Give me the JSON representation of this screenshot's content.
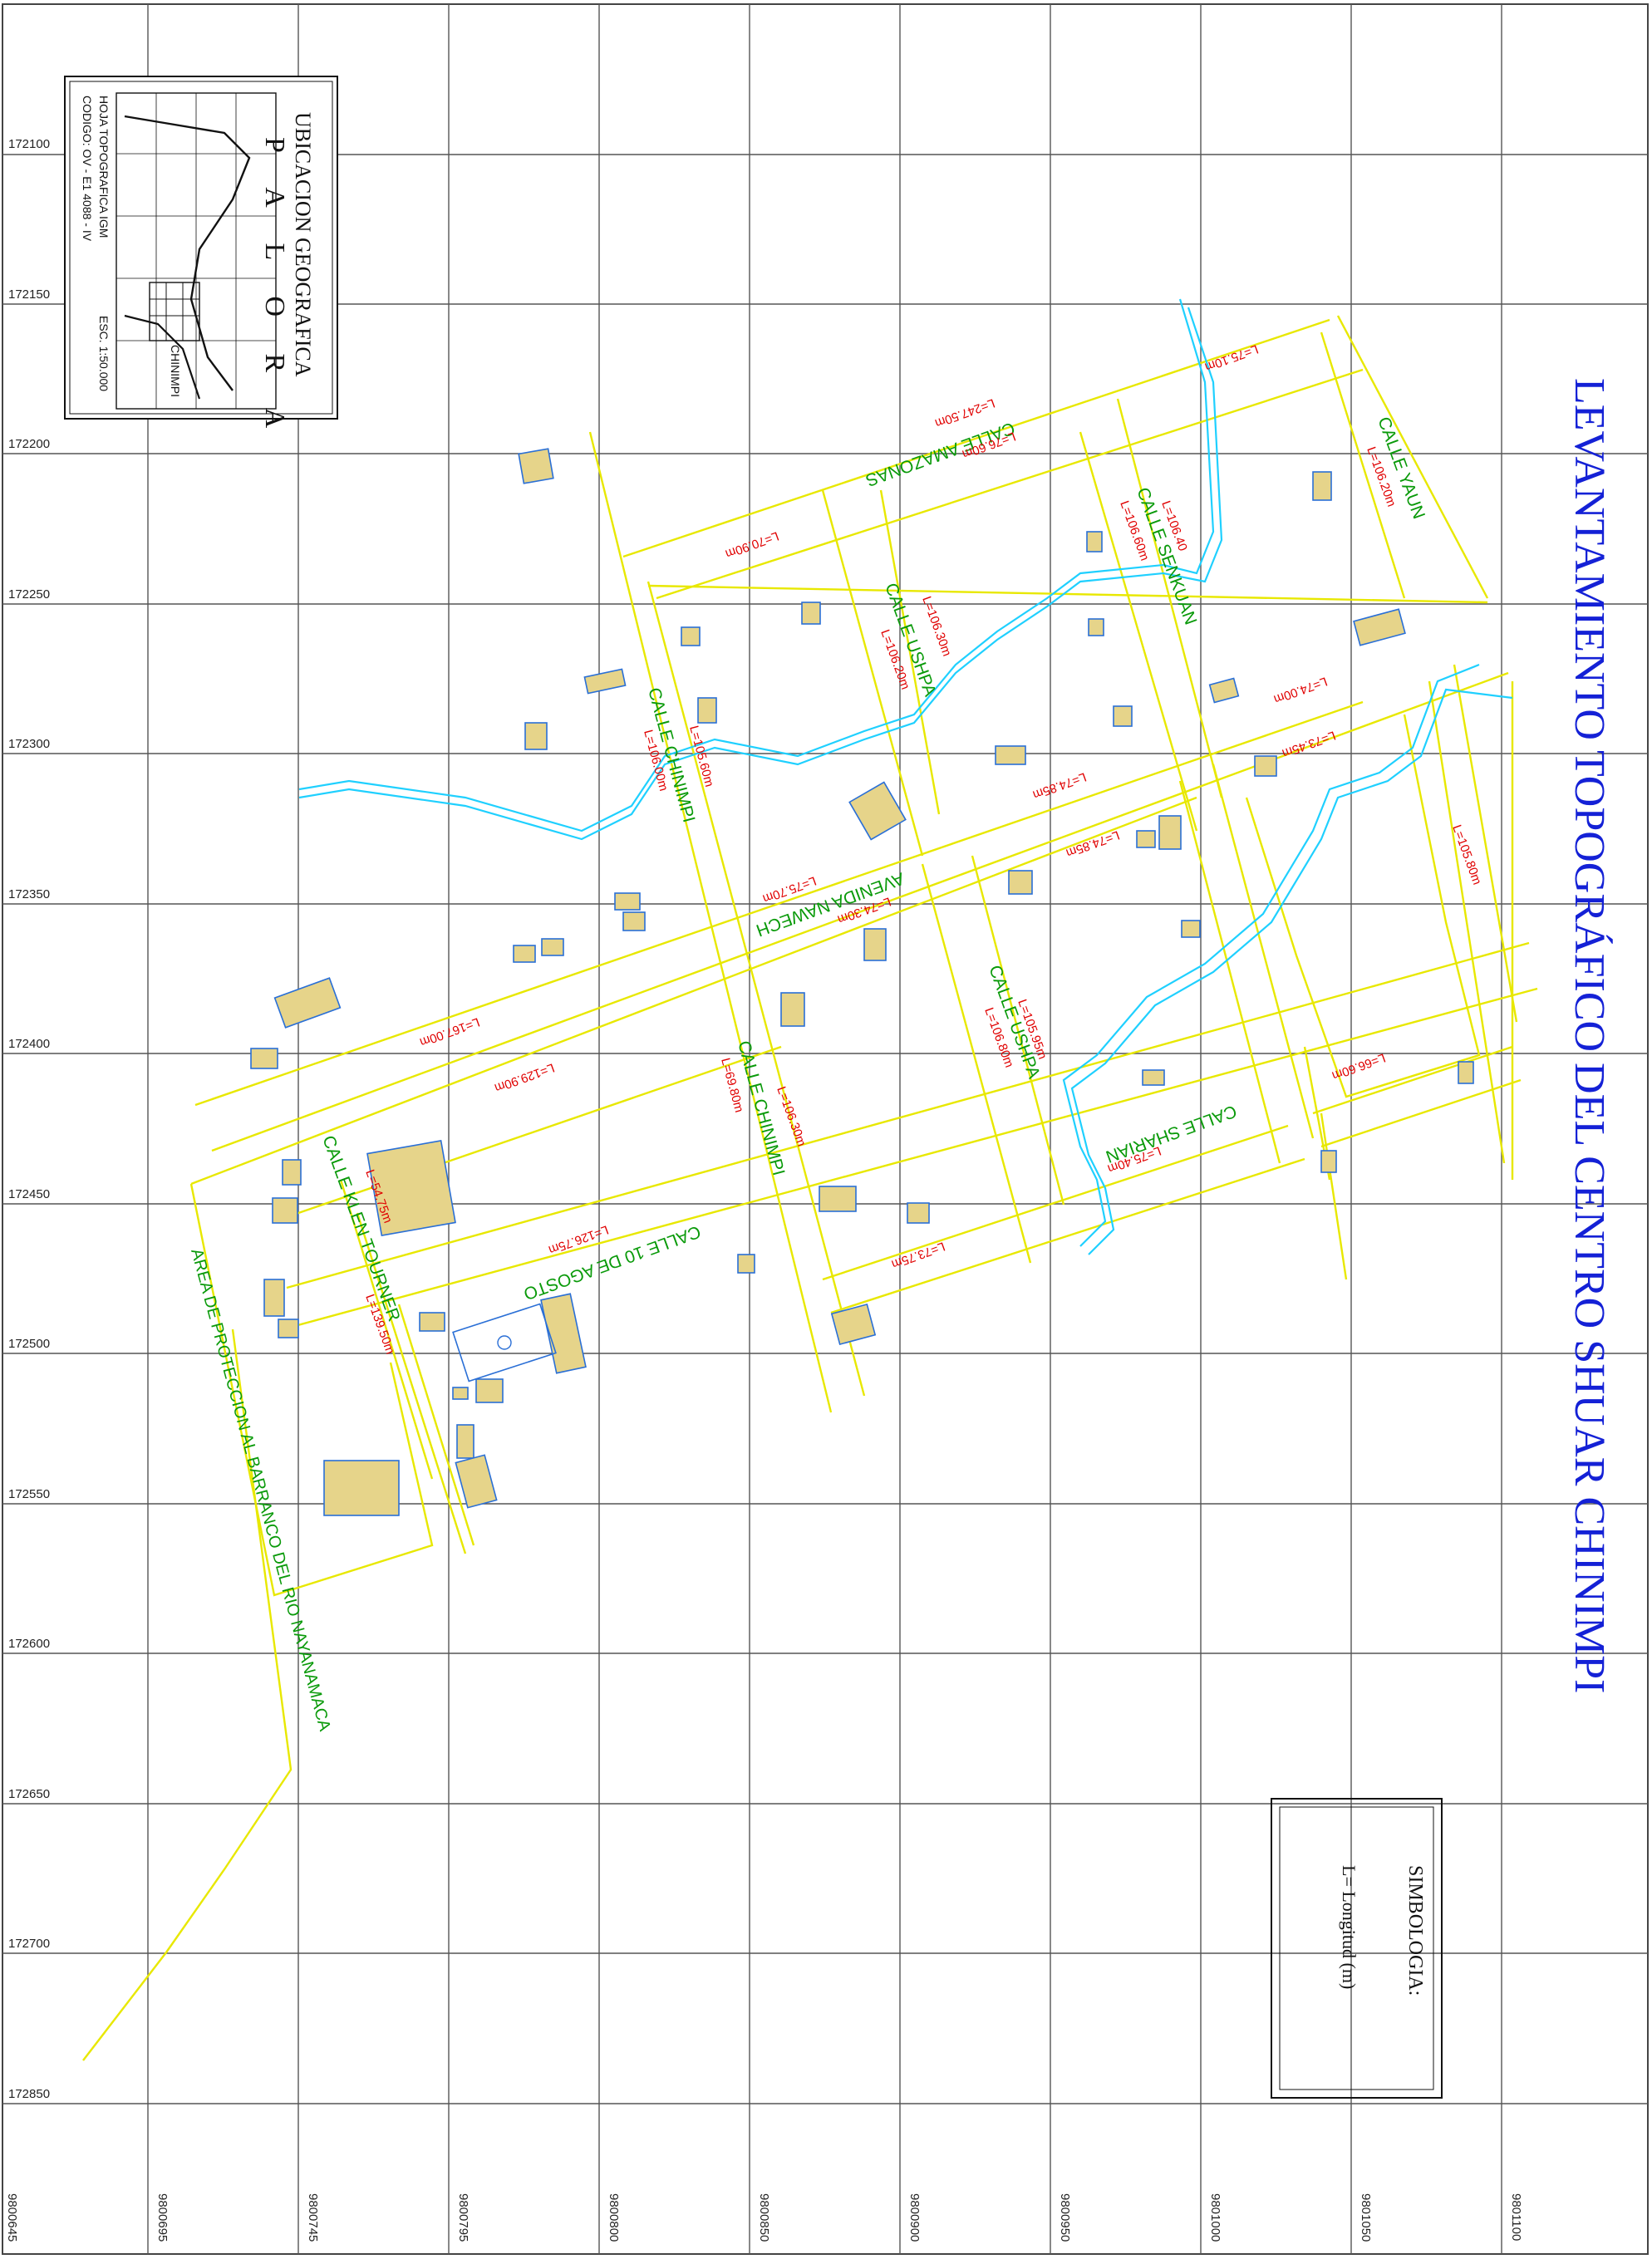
{
  "title": "LEVANTAMIENTO TOPOGRÁFICO DEL CENTRO SHUAR CHINIMPI",
  "grid": {
    "y_ticks": [
      "172100",
      "172150",
      "172200",
      "172250",
      "172300",
      "172350",
      "172400",
      "172450",
      "172500",
      "172550",
      "172600",
      "172650",
      "172700",
      "172850"
    ],
    "x_ticks": [
      "9800645",
      "9800695",
      "9800745",
      "9800795",
      "9800800",
      "9800850",
      "9800900",
      "9800950",
      "9801000",
      "9801050",
      "9801100"
    ]
  },
  "location_box": {
    "title": "UBICACION GEOGRAFICA",
    "subtitle": "P A L O R A",
    "sheet": "HOJA TOPOGRAFICA IGM",
    "code": "CODIGO: OV - E1 4088 - IV",
    "scale": "ESC. 1:50.000",
    "place": "CHINIMPI"
  },
  "legend": {
    "title": "SIMBOLOGIA:",
    "item": "L= Longitud (m)"
  },
  "protection_area": "AREA DE PROTECCION AL BARRANCO DEL RIO NAYANAMACA",
  "streets": [
    {
      "name": "CALLE AMAZONAS"
    },
    {
      "name": "CALLE YAUN"
    },
    {
      "name": "CALLE SENKUAN"
    },
    {
      "name": "CALLE USHPA"
    },
    {
      "name": "CALLE CHINIMPI"
    },
    {
      "name": "AVENIDA NAWECH"
    },
    {
      "name": "CALLE USHPA"
    },
    {
      "name": "CALLE CHINIMPI"
    },
    {
      "name": "CALLE SHARIAN"
    },
    {
      "name": "CALLE 10 DE AGOSTO"
    },
    {
      "name": "CALLE KLEN TOURNER"
    }
  ],
  "lengths": [
    "L=75.10m",
    "L=247.50m",
    "L=76.60m",
    "L=70.90m",
    "L=106.20m",
    "L=106.40",
    "L=106.60m",
    "L=106.30m",
    "L=106.20m",
    "L=74.00m",
    "L=73.45m",
    "L=105.60m",
    "L=106.00m",
    "L=74.85m",
    "L=74.85m",
    "L=75.70m",
    "L=74.30m",
    "L=167.00m",
    "L=129.90m",
    "L=105.80m",
    "L=105.95m",
    "L=106.80m",
    "L=69.80m",
    "L=106.30m",
    "L=66.60m",
    "L=75.40m",
    "L=73.75m",
    "L=126.75m",
    "L=54.75m",
    "L=139.50m"
  ]
}
